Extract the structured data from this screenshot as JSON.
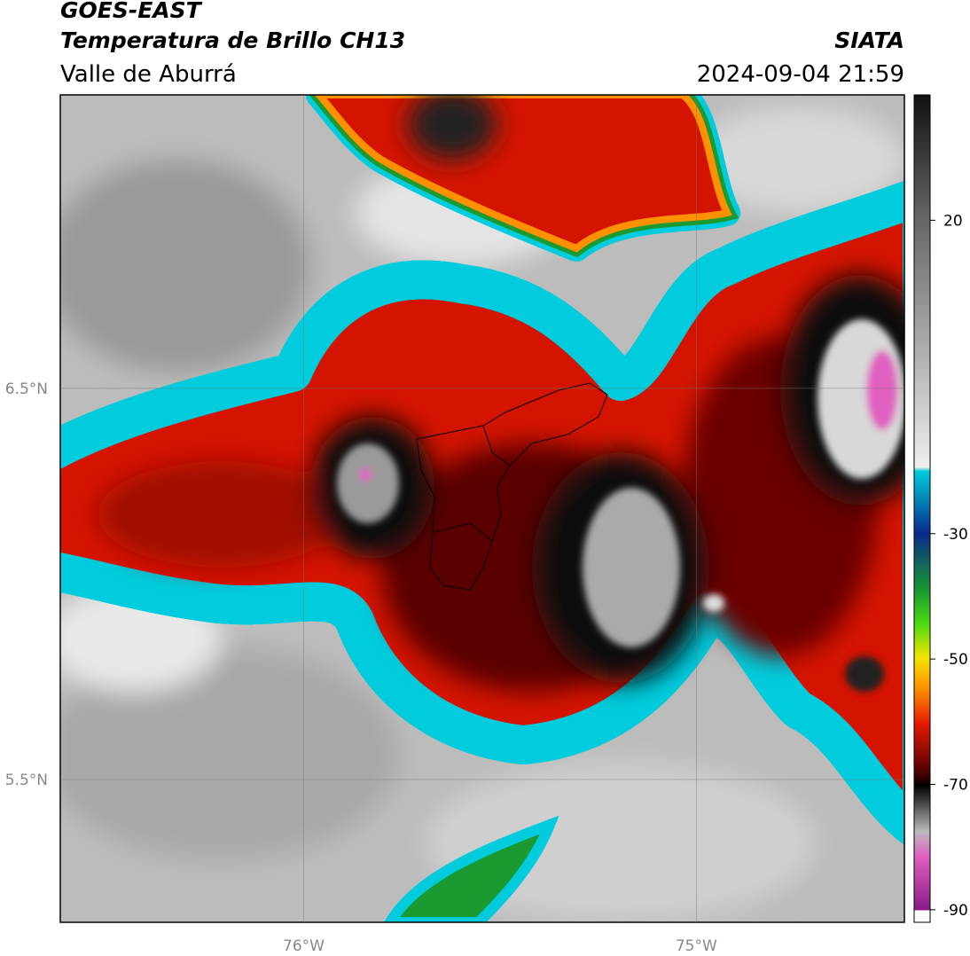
{
  "header": {
    "title": "GOES-EAST",
    "subtitle": "Temperatura de Brillo CH13",
    "region": "Valle de Aburrá",
    "source": "SIATA",
    "datetime": "2024-09-04 21:59"
  },
  "map": {
    "xlim": [
      -76.62,
      -74.47
    ],
    "ylim": [
      5.135,
      7.25
    ],
    "xticks": [
      {
        "value": -76,
        "label": "76°W"
      },
      {
        "value": -75,
        "label": "75°W"
      }
    ],
    "yticks": [
      {
        "value": 6.5,
        "label": "6.5°N"
      },
      {
        "value": 5.5,
        "label": "5.5°N"
      }
    ],
    "grid": true
  },
  "colorbar": {
    "lim": [
      -92,
      40
    ],
    "ticks": [
      20,
      -30,
      -50,
      -70,
      -90
    ]
  }
}
